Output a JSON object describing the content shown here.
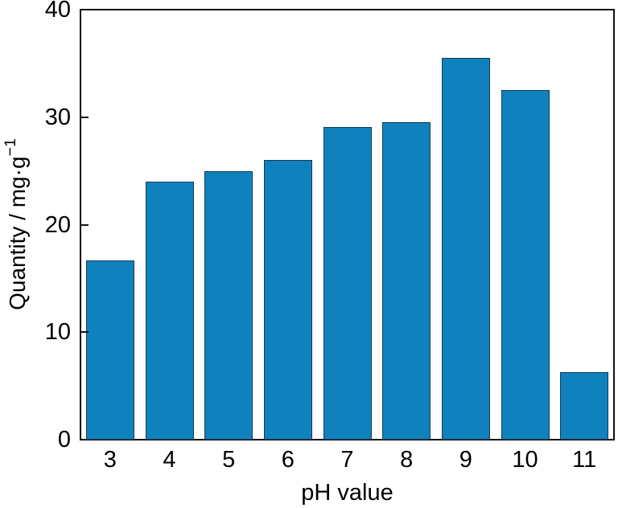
{
  "figure": {
    "background": "#ffffff"
  },
  "chart_data": {
    "type": "bar",
    "title": "",
    "xlabel": "pH value",
    "ylabel": "Quantity / mg·g⁻¹",
    "ylabel_base": "Quantity / mg·g",
    "ylabel_superscript": "−1",
    "categories": [
      "3",
      "4",
      "5",
      "6",
      "7",
      "8",
      "9",
      "10",
      "11"
    ],
    "x_numeric": [
      3,
      4,
      5,
      6,
      7,
      8,
      9,
      10,
      11
    ],
    "values": [
      16.7,
      24,
      25,
      26,
      29.1,
      29.5,
      35.5,
      32.5,
      6.25
    ],
    "xlim": [
      2.5,
      11.5
    ],
    "ylim": [
      0,
      40
    ],
    "yticks": [
      0,
      10,
      20,
      30,
      40
    ],
    "ytick_labels": [
      "0",
      "10",
      "20",
      "30",
      "40"
    ],
    "grid": false,
    "legend": null,
    "tick_direction": "in",
    "bar_color": "#0f81bd",
    "bar_edge_color": "#173A54",
    "axis_color": "#111111",
    "text_color": "#000000"
  }
}
